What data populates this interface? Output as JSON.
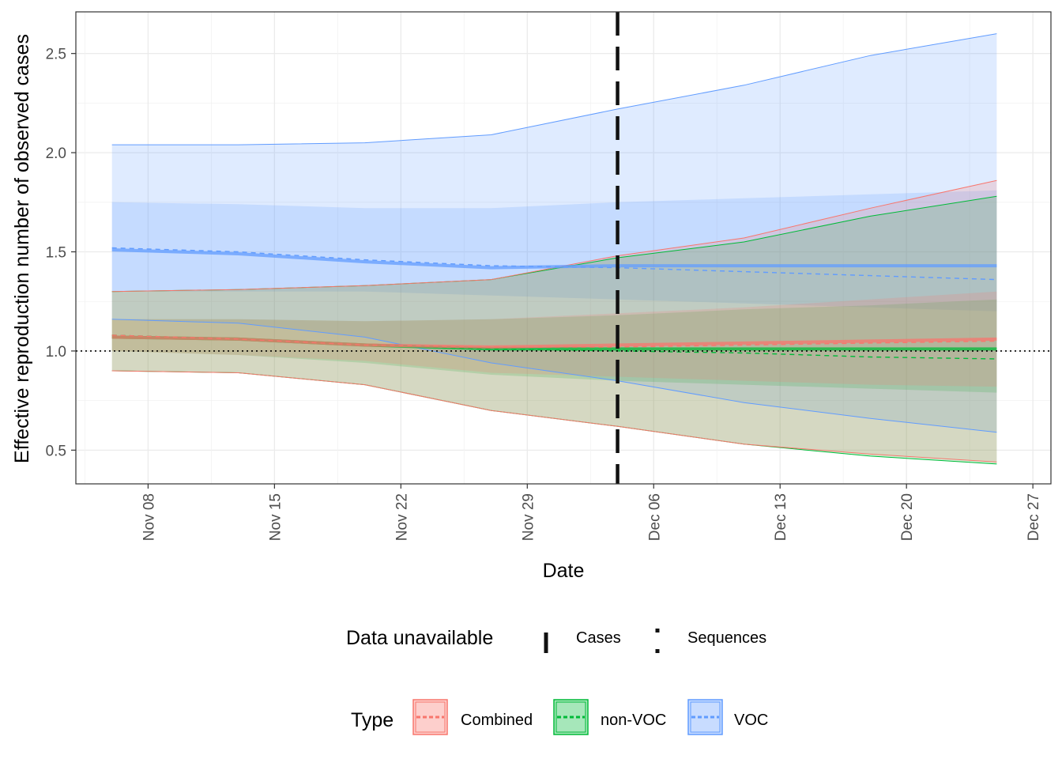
{
  "chart_data": {
    "type": "area",
    "xlabel": "Date",
    "ylabel": "Effective reproduction number of observed cases",
    "x_ticks": [
      "Nov 08",
      "Nov 15",
      "Nov 22",
      "Nov 29",
      "Dec 06",
      "Dec 13",
      "Dec 20",
      "Dec 27"
    ],
    "x_tick_dates": [
      "2020-11-08",
      "2020-11-15",
      "2020-11-22",
      "2020-11-29",
      "2020-12-06",
      "2020-12-13",
      "2020-12-20",
      "2020-12-27"
    ],
    "y_ticks": [
      "0.5",
      "1.0",
      "1.5",
      "2.0",
      "2.5"
    ],
    "xlim": [
      "2020-11-04",
      "2020-12-28"
    ],
    "ylim": [
      0.33,
      2.71
    ],
    "grid": true,
    "reference_line_y": 1.0,
    "data_unavailable_lines": [
      {
        "label": "Cases",
        "x": "2020-12-04",
        "style": "longdash"
      }
    ],
    "series": [
      {
        "name": "VOC",
        "color": "#619CFF",
        "x": [
          "2020-11-06",
          "2020-11-13",
          "2020-11-20",
          "2020-11-27",
          "2020-12-04",
          "2020-12-11",
          "2020-12-18",
          "2020-12-25"
        ],
        "lower90": [
          1.16,
          1.14,
          1.07,
          0.94,
          0.85,
          0.74,
          0.66,
          0.59
        ],
        "upper90": [
          2.04,
          2.04,
          2.05,
          2.09,
          2.22,
          2.34,
          2.49,
          2.6
        ],
        "lower50": [
          1.3,
          1.3,
          1.3,
          1.28,
          1.26,
          1.24,
          1.22,
          1.2
        ],
        "upper50": [
          1.75,
          1.74,
          1.72,
          1.72,
          1.75,
          1.77,
          1.79,
          1.81
        ],
        "median": [
          1.51,
          1.49,
          1.45,
          1.42,
          1.43,
          1.43,
          1.43,
          1.43
        ],
        "mean": [
          1.52,
          1.5,
          1.46,
          1.43,
          1.42,
          1.4,
          1.38,
          1.36
        ]
      },
      {
        "name": "non-VOC",
        "color": "#00BA38",
        "x": [
          "2020-11-06",
          "2020-11-13",
          "2020-11-20",
          "2020-11-27",
          "2020-12-04",
          "2020-12-11",
          "2020-12-18",
          "2020-12-25"
        ],
        "lower90": [
          0.9,
          0.89,
          0.83,
          0.7,
          0.62,
          0.53,
          0.47,
          0.43
        ],
        "upper90": [
          1.3,
          1.31,
          1.33,
          1.36,
          1.47,
          1.55,
          1.68,
          1.78
        ],
        "lower50": [
          1.0,
          0.98,
          0.94,
          0.88,
          0.85,
          0.83,
          0.81,
          0.79
        ],
        "upper50": [
          1.16,
          1.16,
          1.15,
          1.16,
          1.18,
          1.21,
          1.23,
          1.26
        ],
        "median": [
          1.07,
          1.06,
          1.03,
          1.01,
          1.01,
          1.01,
          1.01,
          1.01
        ],
        "mean": [
          1.08,
          1.06,
          1.03,
          1.01,
          1.0,
          0.99,
          0.97,
          0.96
        ]
      },
      {
        "name": "Combined",
        "color": "#F8766D",
        "x": [
          "2020-11-06",
          "2020-11-13",
          "2020-11-20",
          "2020-11-27",
          "2020-12-04",
          "2020-12-11",
          "2020-12-18",
          "2020-12-25"
        ],
        "lower90": [
          0.9,
          0.89,
          0.83,
          0.7,
          0.62,
          0.53,
          0.48,
          0.44
        ],
        "upper90": [
          1.3,
          1.31,
          1.33,
          1.36,
          1.48,
          1.57,
          1.72,
          1.86
        ],
        "lower50": [
          1.0,
          0.98,
          0.95,
          0.89,
          0.87,
          0.85,
          0.83,
          0.82
        ],
        "upper50": [
          1.16,
          1.16,
          1.15,
          1.16,
          1.19,
          1.22,
          1.26,
          1.3
        ],
        "median": [
          1.07,
          1.06,
          1.03,
          1.02,
          1.03,
          1.04,
          1.05,
          1.06
        ],
        "mean": [
          1.08,
          1.06,
          1.03,
          1.02,
          1.02,
          1.03,
          1.04,
          1.05
        ]
      }
    ],
    "legends": [
      {
        "title": "Data unavailable",
        "items": [
          {
            "label": "Cases",
            "style": "longdash"
          },
          {
            "label": "Sequences",
            "style": "dotted"
          }
        ]
      },
      {
        "title": "Type",
        "items": [
          {
            "label": "Combined",
            "color": "#F8766D"
          },
          {
            "label": "non-VOC",
            "color": "#00BA38"
          },
          {
            "label": "VOC",
            "color": "#619CFF"
          }
        ]
      }
    ]
  }
}
